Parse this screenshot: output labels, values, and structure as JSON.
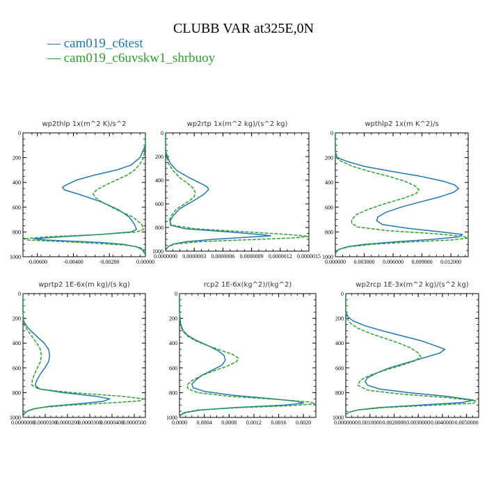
{
  "figure": {
    "title": "CLUBB VAR at325E,0N",
    "legend": [
      {
        "label": "cam019_c6test",
        "color": "#1f77b4"
      },
      {
        "label": "cam019_c6uvskw1_shrbuoy",
        "color": "#2ca02c"
      }
    ]
  },
  "chart_data": [
    {
      "type": "line",
      "title": "wp2thlp   1x(m^2 K)/s^2",
      "xlim": [
        -0.0068,
        0.0
      ],
      "ylim": [
        1000,
        0
      ],
      "xticks": [
        "-0.00600",
        "-0.00400",
        "-0.00200",
        "0.00000"
      ],
      "xtick_values": [
        -0.006,
        -0.004,
        -0.002,
        0.0
      ],
      "yticks": [
        "0",
        "200",
        "400",
        "600",
        "800",
        "1000"
      ],
      "series": [
        {
          "name": "cam019_c6test",
          "y": [
            0,
            100,
            200,
            260,
            300,
            340,
            380,
            420,
            440,
            460,
            500,
            560,
            620,
            680,
            740,
            780,
            800,
            820,
            840,
            855,
            865,
            875,
            885,
            900,
            920,
            940,
            960,
            980,
            1000
          ],
          "x": [
            0.0,
            0.0,
            -0.0003,
            -0.0008,
            -0.0016,
            -0.0028,
            -0.0038,
            -0.0044,
            -0.0046,
            -0.0045,
            -0.0036,
            -0.0024,
            -0.0015,
            -0.0009,
            -0.0006,
            -0.0005,
            -0.0008,
            -0.0025,
            -0.0048,
            -0.0062,
            -0.0055,
            -0.004,
            -0.0025,
            -0.0012,
            -0.0005,
            -0.0002,
            -0.0001,
            0.0,
            0.0
          ]
        },
        {
          "name": "cam019_c6uvskw1_shrbuoy",
          "y": [
            0,
            100,
            200,
            250,
            300,
            340,
            380,
            420,
            460,
            490,
            520,
            560,
            620,
            680,
            740,
            780,
            800,
            820,
            840,
            855,
            865,
            875,
            890,
            905,
            920,
            940,
            960,
            980,
            1000
          ],
          "x": [
            0.0,
            0.0,
            -0.0001,
            -0.0003,
            -0.0006,
            -0.001,
            -0.0016,
            -0.0022,
            -0.0027,
            -0.0029,
            -0.0028,
            -0.0024,
            -0.0016,
            -0.0007,
            -0.0002,
            -0.0001,
            -0.0005,
            -0.0025,
            -0.0055,
            -0.0068,
            -0.0065,
            -0.005,
            -0.003,
            -0.0012,
            -0.0004,
            -0.0001,
            0.0,
            0.0,
            0.0
          ]
        }
      ]
    },
    {
      "type": "line",
      "title": "wp2rtp   1x(m^2 kg)/(s^2 kg)",
      "xlim": [
        0.0,
        1.5e-06
      ],
      "ylim": [
        1000,
        0
      ],
      "xticks": [
        "0.0000000",
        "0.0000003",
        "0.0000006",
        "0.0000009",
        "0.0000012",
        "0.0000015"
      ],
      "xtick_values": [
        0.0,
        3e-07,
        6e-07,
        9e-07,
        1.2e-06,
        1.5e-06
      ],
      "yticks": [
        "0",
        "200",
        "400",
        "600",
        "800",
        "1000"
      ],
      "series": [
        {
          "name": "cam019_c6test",
          "y": [
            0,
            150,
            200,
            260,
            320,
            380,
            420,
            440,
            460,
            480,
            520,
            580,
            640,
            700,
            740,
            780,
            810,
            840,
            860,
            870,
            880,
            900,
            920,
            940,
            960,
            980,
            1000
          ],
          "x": [
            0.0,
            0.0,
            2e-08,
            5e-08,
            1.2e-07,
            2.5e-07,
            3.5e-07,
            4e-07,
            4.4e-07,
            4.5e-07,
            4e-07,
            2.8e-07,
            1.5e-07,
            8e-08,
            5e-08,
            5e-08,
            2e-07,
            7e-07,
            1e-06,
            1.1e-06,
            9e-07,
            5e-07,
            2.2e-07,
            8e-08,
            3e-08,
            1e-08,
            0.0
          ]
        },
        {
          "name": "cam019_c6uvskw1_shrbuoy",
          "y": [
            0,
            150,
            200,
            260,
            320,
            380,
            420,
            460,
            500,
            540,
            580,
            640,
            700,
            740,
            780,
            810,
            840,
            860,
            875,
            890,
            905,
            920,
            940,
            960,
            980,
            1000
          ],
          "x": [
            0.0,
            0.0,
            1e-08,
            3e-08,
            8e-08,
            1.5e-07,
            2.2e-07,
            2.8e-07,
            3.1e-07,
            3e-07,
            2.4e-07,
            1.2e-07,
            6e-08,
            4e-08,
            6e-08,
            3e-07,
            9e-07,
            1.3e-06,
            1.5e-06,
            1.3e-06,
            8e-07,
            3.5e-07,
            1e-07,
            3e-08,
            1e-08,
            0.0
          ]
        }
      ]
    },
    {
      "type": "line",
      "title": "wpthlp2   1x(m K^2)/s",
      "xlim": [
        0.0,
        0.0138
      ],
      "ylim": [
        1000,
        0
      ],
      "xticks": [
        "0.000000",
        "0.003000",
        "0.006000",
        "0.009000",
        "0.012000"
      ],
      "xtick_values": [
        0.0,
        0.003,
        0.006,
        0.009,
        0.012
      ],
      "yticks": [
        "0",
        "200",
        "400",
        "600",
        "800",
        "1000"
      ],
      "series": [
        {
          "name": "cam019_c6test",
          "y": [
            0,
            150,
            200,
            230,
            270,
            310,
            350,
            390,
            420,
            450,
            480,
            520,
            560,
            600,
            640,
            680,
            710,
            740,
            770,
            800,
            820,
            840,
            860,
            880,
            900,
            920,
            940,
            960,
            980,
            1000
          ],
          "x": [
            0.0,
            0.0,
            0.0002,
            0.0012,
            0.003,
            0.0058,
            0.0088,
            0.0112,
            0.0124,
            0.0128,
            0.0123,
            0.0107,
            0.0087,
            0.0068,
            0.0053,
            0.0044,
            0.0043,
            0.0049,
            0.0075,
            0.011,
            0.0132,
            0.0128,
            0.01,
            0.0062,
            0.003,
            0.0012,
            0.0004,
            0.0001,
            0.0,
            0.0
          ]
        },
        {
          "name": "cam019_c6uvskw1_shrbuoy",
          "y": [
            0,
            150,
            200,
            230,
            270,
            310,
            350,
            390,
            430,
            460,
            490,
            530,
            570,
            620,
            660,
            700,
            730,
            760,
            790,
            815,
            835,
            850,
            865,
            880,
            900,
            920,
            940,
            960,
            980,
            1000
          ],
          "x": [
            0.0,
            0.0,
            0.0001,
            0.0006,
            0.0018,
            0.0035,
            0.0055,
            0.0072,
            0.0083,
            0.0087,
            0.0084,
            0.007,
            0.0052,
            0.0033,
            0.0022,
            0.0017,
            0.0017,
            0.0023,
            0.0055,
            0.0105,
            0.0132,
            0.0138,
            0.012,
            0.008,
            0.0038,
            0.0014,
            0.0004,
            0.0001,
            0.0,
            0.0
          ]
        }
      ]
    },
    {
      "type": "line",
      "title": "wprtp2   1E-6x(m kg)/(s kg)",
      "xlim": [
        0.0,
        5.5e-05
      ],
      "ylim": [
        1000,
        0
      ],
      "xticks": [
        "0.0000000",
        "0.0000100",
        "0.0000200",
        "0.0000300",
        "0.0000400",
        "0.0000500"
      ],
      "xtick_values": [
        0.0,
        1e-05,
        2e-05,
        3e-05,
        4e-05,
        5e-05
      ],
      "yticks": [
        "0",
        "200",
        "400",
        "600",
        "800",
        "1000"
      ],
      "series": [
        {
          "name": "cam019_c6test",
          "y": [
            0,
            150,
            220,
            260,
            300,
            350,
            400,
            450,
            500,
            550,
            600,
            650,
            700,
            740,
            770,
            800,
            830,
            850,
            870,
            890,
            910,
            930,
            950,
            970,
            990,
            1000
          ],
          "x": [
            0.0,
            0.0,
            3e-07,
            1.5e-06,
            3.5e-06,
            6.5e-06,
            9.5e-06,
            1.15e-05,
            1.2e-05,
            1.15e-05,
            9.8e-06,
            7.8e-06,
            6.2e-06,
            5.5e-06,
            7.5e-06,
            1.8e-05,
            3.3e-05,
            3.9e-05,
            3.6e-05,
            2.5e-05,
            1.2e-05,
            5e-06,
            2e-06,
            5e-07,
            1e-07,
            0.0
          ]
        },
        {
          "name": "cam019_c6uvskw1_shrbuoy",
          "y": [
            0,
            150,
            220,
            260,
            300,
            350,
            400,
            450,
            500,
            550,
            600,
            650,
            700,
            740,
            770,
            800,
            830,
            850,
            865,
            880,
            900,
            920,
            940,
            960,
            980,
            1000
          ],
          "x": [
            0.0,
            0.0,
            2e-07,
            8e-07,
            2.2e-06,
            4.2e-06,
            6.2e-06,
            7.8e-06,
            8.3e-06,
            7.8e-06,
            6.5e-06,
            5.2e-06,
            4.2e-06,
            4e-06,
            7e-06,
            2.2e-05,
            4.5e-05,
            5.4e-05,
            5.3e-05,
            4.2e-05,
            2.2e-05,
            8e-06,
            3e-06,
            8e-07,
            2e-07,
            0.0
          ]
        }
      ]
    },
    {
      "type": "line",
      "title": "rcp2   1E-6x(kg^2)/(kg^2)",
      "xlim": [
        0.0,
        0.0022
      ],
      "ylim": [
        1000,
        0
      ],
      "xticks": [
        "0.0000",
        "0.0004",
        "0.0008",
        "0.0012",
        "0.0016",
        "0.0020"
      ],
      "xtick_values": [
        0.0,
        0.0004,
        0.0008,
        0.0012,
        0.0016,
        0.002
      ],
      "yticks": [
        "0",
        "200",
        "400",
        "600",
        "800",
        "1000"
      ],
      "series": [
        {
          "name": "cam019_c6test",
          "y": [
            0,
            150,
            250,
            300,
            340,
            380,
            420,
            460,
            500,
            540,
            580,
            620,
            660,
            700,
            730,
            760,
            790,
            820,
            850,
            870,
            885,
            900,
            920,
            940,
            960,
            980,
            1000
          ],
          "x": [
            0.0,
            0.0,
            2e-05,
            6e-05,
            0.00014,
            0.00028,
            0.00046,
            0.00062,
            0.00072,
            0.00074,
            0.00068,
            0.00052,
            0.00036,
            0.00026,
            0.0002,
            0.00022,
            0.0004,
            0.00085,
            0.0015,
            0.0019,
            0.002,
            0.0017,
            0.0009,
            0.00035,
            0.0001,
            2e-05,
            0.0
          ]
        },
        {
          "name": "cam019_c6uvskw1_shrbuoy",
          "y": [
            0,
            150,
            250,
            300,
            340,
            380,
            420,
            460,
            490,
            520,
            550,
            590,
            630,
            670,
            710,
            740,
            770,
            800,
            830,
            855,
            875,
            890,
            905,
            920,
            940,
            960,
            980,
            1000
          ],
          "x": [
            0.0,
            0.0,
            1e-05,
            5e-05,
            0.00012,
            0.00025,
            0.00045,
            0.00068,
            0.00085,
            0.00095,
            0.00092,
            0.00075,
            0.00052,
            0.00032,
            0.00018,
            0.00012,
            0.00014,
            0.0003,
            0.0008,
            0.0016,
            0.0021,
            0.0022,
            0.0018,
            0.001,
            0.0003,
            8e-05,
            1e-05,
            0.0
          ]
        }
      ]
    },
    {
      "type": "line",
      "title": "wp2rcp   1E-3x(m^2 kg)/(s^2 kg)",
      "xlim": [
        0.0,
        0.0055
      ],
      "ylim": [
        1000,
        0
      ],
      "xticks": [
        "0.0000000",
        "0.0010000",
        "0.0020000",
        "0.0030000",
        "0.0040000",
        "0.0050000"
      ],
      "xtick_values": [
        0.0,
        0.001,
        0.002,
        0.003,
        0.004,
        0.005
      ],
      "yticks": [
        "0",
        "200",
        "400",
        "600",
        "800",
        "1000"
      ],
      "series": [
        {
          "name": "cam019_c6test",
          "y": [
            0,
            150,
            190,
            220,
            260,
            300,
            340,
            380,
            420,
            450,
            480,
            520,
            560,
            600,
            640,
            680,
            710,
            740,
            770,
            800,
            830,
            860,
            880,
            900,
            920,
            940,
            960,
            980,
            1000
          ],
          "x": [
            0.0,
            0.0,
            0.0001,
            0.0003,
            0.0008,
            0.0015,
            0.0023,
            0.0031,
            0.0037,
            0.0041,
            0.0039,
            0.0032,
            0.0025,
            0.0018,
            0.0013,
            0.0009,
            0.0008,
            0.0009,
            0.0014,
            0.0026,
            0.0042,
            0.0053,
            0.0048,
            0.0031,
            0.0014,
            0.0005,
            0.0001,
            0.0,
            0.0
          ]
        },
        {
          "name": "cam019_c6uvskw1_shrbuoy",
          "y": [
            0,
            150,
            200,
            240,
            280,
            320,
            360,
            400,
            440,
            480,
            510,
            540,
            580,
            620,
            660,
            700,
            740,
            780,
            810,
            840,
            865,
            885,
            900,
            920,
            940,
            960,
            980,
            1000
          ],
          "x": [
            0.0,
            0.0,
            5e-05,
            0.0002,
            0.0005,
            0.001,
            0.0016,
            0.0022,
            0.0027,
            0.003,
            0.0031,
            0.0029,
            0.0023,
            0.0016,
            0.001,
            0.0006,
            0.0005,
            0.0009,
            0.0022,
            0.0042,
            0.0054,
            0.0053,
            0.0038,
            0.0016,
            0.0005,
            0.0001,
            0.0,
            0.0
          ]
        }
      ]
    }
  ]
}
